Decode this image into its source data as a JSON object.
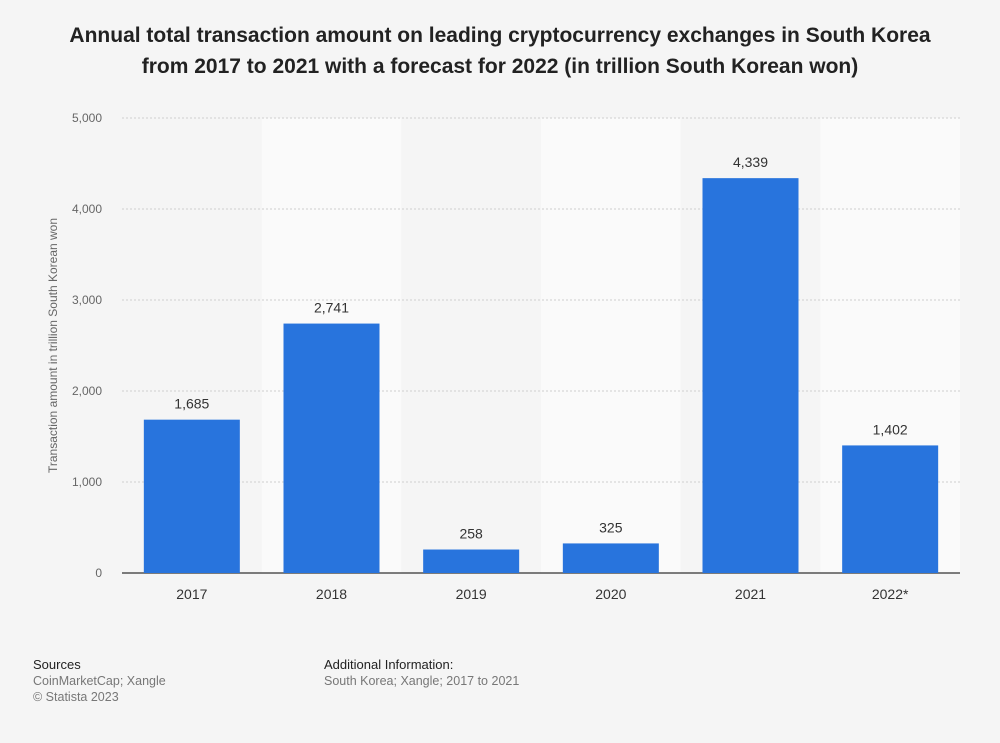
{
  "chart_data": {
    "type": "bar",
    "title": "Annual total transaction amount on leading cryptocurrency exchanges in South Korea from 2017 to 2021 with a forecast for 2022 (in trillion South Korean won)",
    "categories": [
      "2017",
      "2018",
      "2019",
      "2020",
      "2021",
      "2022*"
    ],
    "values": [
      1685,
      2741,
      258,
      325,
      4339,
      1402
    ],
    "value_labels": [
      "1,685",
      "2,741",
      "258",
      "325",
      "4,339",
      "1,402"
    ],
    "xlabel": "",
    "ylabel": "Transaction amount in trillion South Korean won",
    "ylim": [
      0,
      5000
    ],
    "yticks": [
      0,
      1000,
      2000,
      3000,
      4000,
      5000
    ],
    "ytick_labels": [
      "0",
      "1,000",
      "2,000",
      "3,000",
      "4,000",
      "5,000"
    ],
    "grid": true,
    "bar_color": "#2874dd"
  },
  "footer": {
    "sources_title": "Sources",
    "sources_line1": "CoinMarketCap; Xangle",
    "sources_line2": "© Statista 2023",
    "additional_title": "Additional Information:",
    "additional_line1": "South Korea; Xangle; 2017 to 2021"
  }
}
